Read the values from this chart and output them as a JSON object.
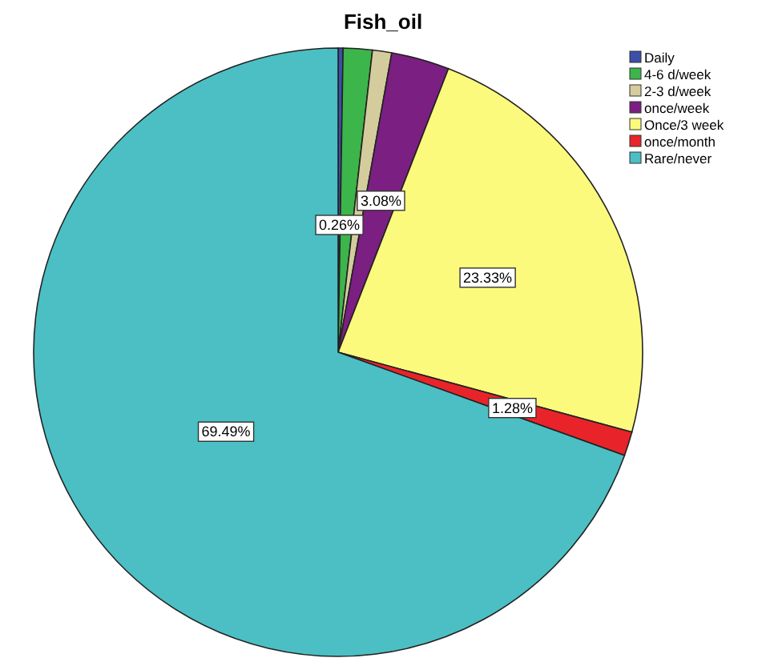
{
  "chart_data": {
    "type": "pie",
    "title": "Fish_oil",
    "categories": [
      "Daily",
      "4-6 d/week",
      "2-3 d/week",
      "once/week",
      "Once/3 week",
      "once/month",
      "Rare/never"
    ],
    "values": [
      0.26,
      1.54,
      1.02,
      3.08,
      23.33,
      1.28,
      69.49
    ],
    "value_labels": [
      "0.26%",
      null,
      null,
      "3.08%",
      "23.33%",
      "1.28%",
      "69.49%"
    ],
    "colors": [
      "#3b4fa8",
      "#3cb54a",
      "#d4cc9c",
      "#7b1f82",
      "#fbfa7c",
      "#e8242a",
      "#4bbfc4"
    ],
    "legend": "top right"
  }
}
